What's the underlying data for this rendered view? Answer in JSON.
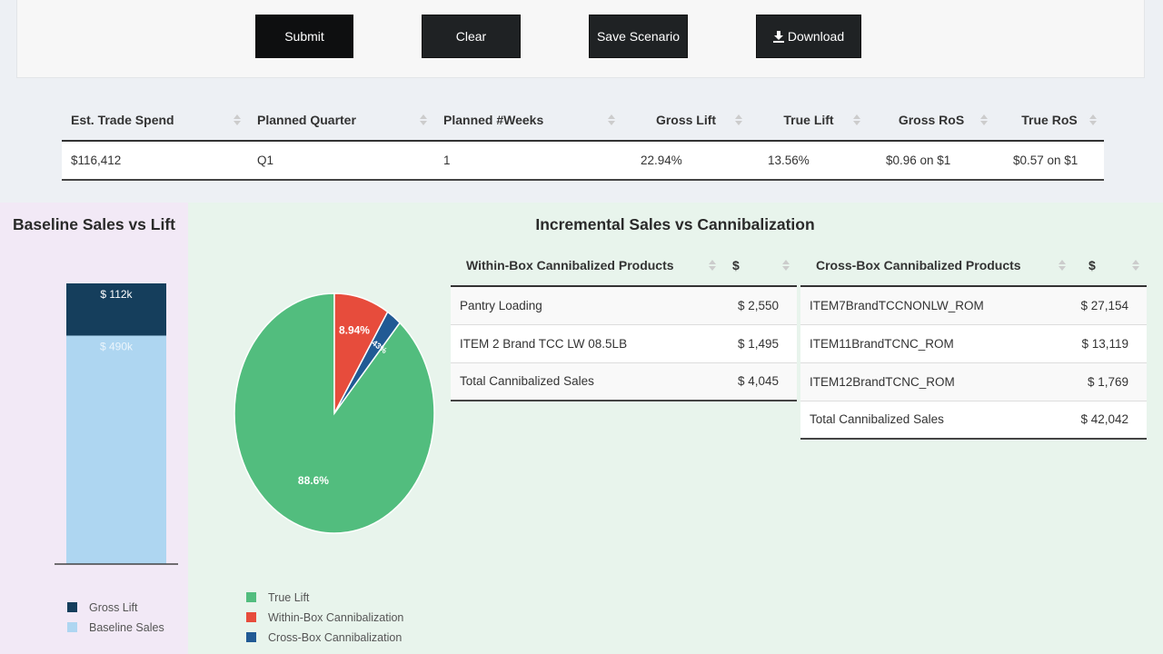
{
  "toolbar": {
    "submit_label": "Submit",
    "clear_label": "Clear",
    "save_label": "Save Scenario",
    "download_label": "Download"
  },
  "summary": {
    "headers": [
      "Est. Trade Spend",
      "Planned Quarter",
      "Planned #Weeks",
      "Gross Lift",
      "True Lift",
      "Gross RoS",
      "True RoS"
    ],
    "row": [
      "$116,412",
      "Q1",
      "1",
      "22.94%",
      "13.56%",
      "$0.96 on $1",
      "$0.57 on $1"
    ]
  },
  "baseline_panel": {
    "title": "Baseline Sales vs Lift"
  },
  "incremental_panel": {
    "title": "Incremental Sales vs Cannibalization"
  },
  "within_table": {
    "headers": [
      "Within-Box Cannibalized Products",
      "$"
    ],
    "rows": [
      [
        "Pantry Loading",
        "$ 2,550"
      ],
      [
        "ITEM 2 Brand TCC LW 08.5LB",
        "$ 1,495"
      ],
      [
        "Total Cannibalized Sales",
        "$ 4,045"
      ]
    ]
  },
  "cross_table": {
    "headers": [
      "Cross-Box Cannibalized Products",
      "$"
    ],
    "rows": [
      [
        "ITEM7BrandTCCNONLW_ROM",
        "$ 27,154"
      ],
      [
        "ITEM11BrandTCNC_ROM",
        "$ 13,119"
      ],
      [
        "ITEM12BrandTCNC_ROM",
        "$ 1,769"
      ],
      [
        "Total Cannibalized Sales",
        "$ 42,042"
      ]
    ]
  },
  "chart_data": [
    {
      "type": "bar",
      "stacked": true,
      "categories": [
        ""
      ],
      "series": [
        {
          "name": "Baseline Sales",
          "values": [
            490
          ],
          "label": "$ 490k",
          "color": "#aed6f1"
        },
        {
          "name": "Gross Lift",
          "values": [
            112
          ],
          "label": "$ 112k",
          "color": "#153e5c"
        }
      ],
      "ylim": [
        0,
        602
      ],
      "legend": "bottom"
    },
    {
      "type": "pie",
      "slices": [
        {
          "name": "True Lift",
          "value": 88.6,
          "label": "88.6%",
          "color": "#52bd7e"
        },
        {
          "name": "Cross-Box Cannibalization",
          "value": 2.43,
          "label": "2.43%",
          "color": "#215a94"
        },
        {
          "name": "Within-Box Cannibalization",
          "value": 8.94,
          "label": "8.94%",
          "color": "#e74c3c"
        }
      ],
      "legend": "bottom-left"
    }
  ]
}
